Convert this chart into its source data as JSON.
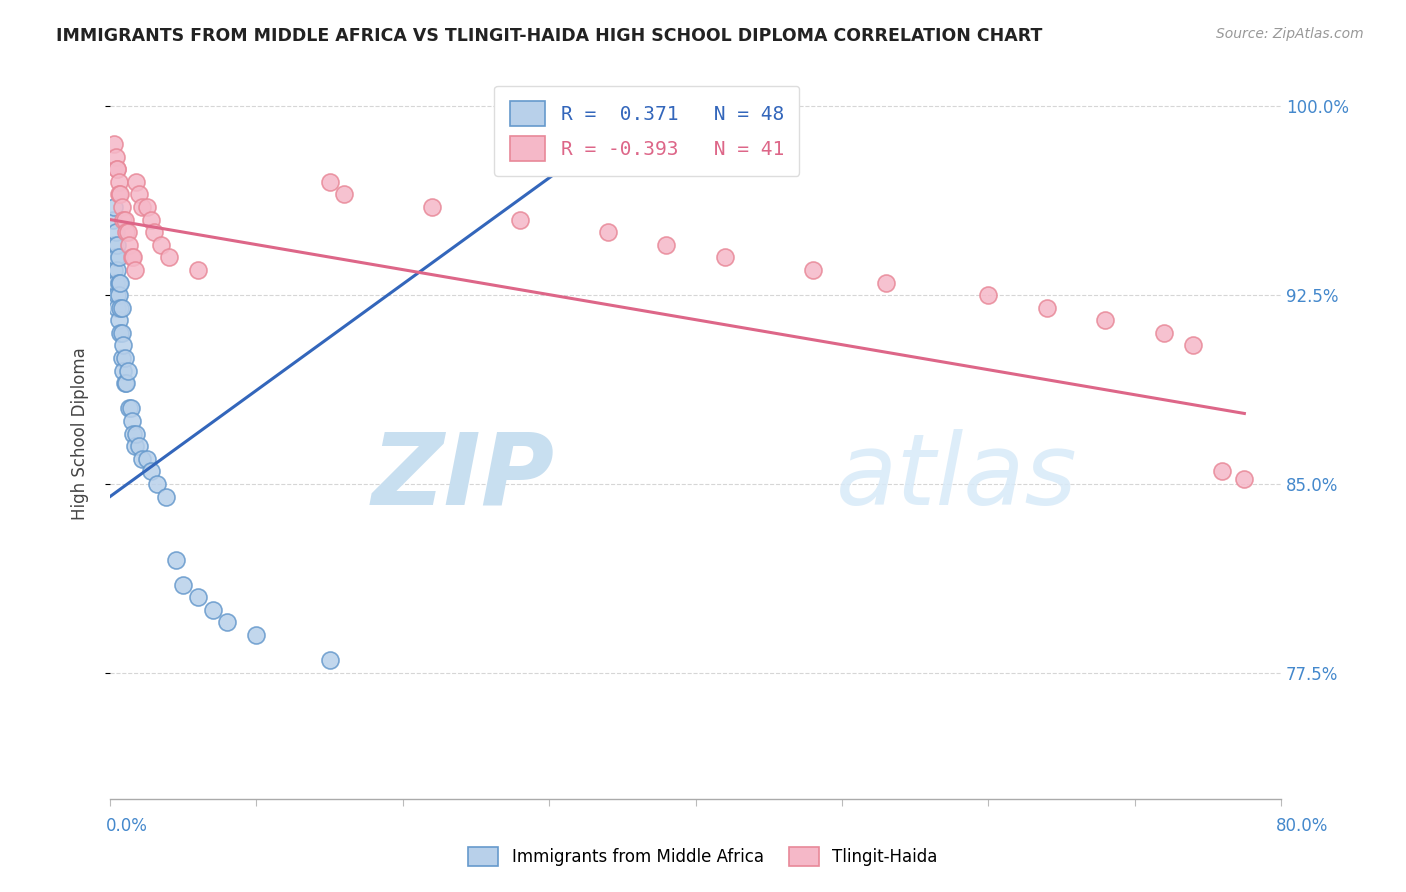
{
  "title": "IMMIGRANTS FROM MIDDLE AFRICA VS TLINGIT-HAIDA HIGH SCHOOL DIPLOMA CORRELATION CHART",
  "source": "Source: ZipAtlas.com",
  "ylabel": "High School Diploma",
  "x_min": 0.0,
  "x_max": 0.8,
  "y_min": 0.725,
  "y_max": 1.015,
  "blue_R": 0.371,
  "blue_N": 48,
  "pink_R": -0.393,
  "pink_N": 41,
  "blue_color": "#b8d0ea",
  "blue_edge_color": "#6699cc",
  "blue_line_color": "#3366bb",
  "pink_color": "#f5b8c8",
  "pink_edge_color": "#e88898",
  "pink_line_color": "#dd6688",
  "legend_blue_label": "R =  0.371   N = 48",
  "legend_pink_label": "R = -0.393   N = 41",
  "watermark_zip": "ZIP",
  "watermark_atlas": "atlas",
  "background_color": "#ffffff",
  "y_tick_vals": [
    0.775,
    0.85,
    0.925,
    1.0
  ],
  "y_tick_labels": [
    "77.5%",
    "85.0%",
    "92.5%",
    "100.0%"
  ],
  "blue_x": [
    0.002,
    0.003,
    0.003,
    0.003,
    0.004,
    0.004,
    0.004,
    0.005,
    0.005,
    0.005,
    0.005,
    0.006,
    0.006,
    0.006,
    0.006,
    0.007,
    0.007,
    0.007,
    0.008,
    0.008,
    0.008,
    0.009,
    0.009,
    0.01,
    0.01,
    0.011,
    0.012,
    0.013,
    0.014,
    0.015,
    0.016,
    0.017,
    0.018,
    0.02,
    0.022,
    0.025,
    0.028,
    0.032,
    0.038,
    0.045,
    0.05,
    0.06,
    0.07,
    0.08,
    0.1,
    0.15,
    0.31,
    0.32
  ],
  "blue_y": [
    0.955,
    0.96,
    0.945,
    0.935,
    0.95,
    0.94,
    0.93,
    0.945,
    0.935,
    0.925,
    0.92,
    0.94,
    0.93,
    0.925,
    0.915,
    0.93,
    0.92,
    0.91,
    0.92,
    0.91,
    0.9,
    0.905,
    0.895,
    0.9,
    0.89,
    0.89,
    0.895,
    0.88,
    0.88,
    0.875,
    0.87,
    0.865,
    0.87,
    0.865,
    0.86,
    0.86,
    0.855,
    0.85,
    0.845,
    0.82,
    0.81,
    0.805,
    0.8,
    0.795,
    0.79,
    0.78,
    0.99,
    0.995
  ],
  "pink_x": [
    0.003,
    0.004,
    0.005,
    0.005,
    0.006,
    0.006,
    0.007,
    0.008,
    0.009,
    0.01,
    0.011,
    0.012,
    0.013,
    0.015,
    0.016,
    0.017,
    0.018,
    0.02,
    0.022,
    0.025,
    0.028,
    0.03,
    0.035,
    0.04,
    0.06,
    0.15,
    0.16,
    0.22,
    0.28,
    0.34,
    0.38,
    0.42,
    0.48,
    0.53,
    0.6,
    0.64,
    0.68,
    0.72,
    0.74,
    0.76,
    0.775
  ],
  "pink_y": [
    0.985,
    0.98,
    0.975,
    0.975,
    0.97,
    0.965,
    0.965,
    0.96,
    0.955,
    0.955,
    0.95,
    0.95,
    0.945,
    0.94,
    0.94,
    0.935,
    0.97,
    0.965,
    0.96,
    0.96,
    0.955,
    0.95,
    0.945,
    0.94,
    0.935,
    0.97,
    0.965,
    0.96,
    0.955,
    0.95,
    0.945,
    0.94,
    0.935,
    0.93,
    0.925,
    0.92,
    0.915,
    0.91,
    0.905,
    0.855,
    0.852
  ],
  "blue_trend_x": [
    0.0,
    0.32
  ],
  "blue_trend_y": [
    0.845,
    0.98
  ],
  "pink_trend_x": [
    0.0,
    0.775
  ],
  "pink_trend_y": [
    0.955,
    0.878
  ]
}
